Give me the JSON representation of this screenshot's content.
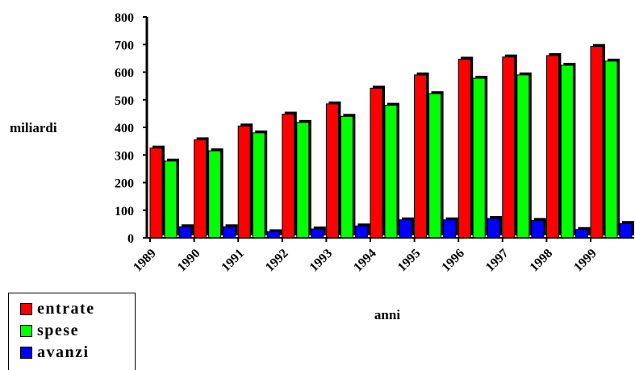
{
  "chart_data": {
    "type": "bar",
    "categories": [
      "1989",
      "1990",
      "1991",
      "1992",
      "1993",
      "1994",
      "1995",
      "1996",
      "1997",
      "1998",
      "1999"
    ],
    "series": [
      {
        "name": "entrate",
        "color": "#ff0000",
        "values": [
          325,
          355,
          405,
          448,
          485,
          542,
          590,
          647,
          655,
          660,
          693
        ]
      },
      {
        "name": "spese",
        "color": "#00ff00",
        "values": [
          278,
          315,
          380,
          418,
          440,
          480,
          522,
          578,
          590,
          625,
          640
        ]
      },
      {
        "name": "avanzi",
        "color": "#0000ff",
        "values": [
          40,
          40,
          22,
          32,
          43,
          65,
          65,
          70,
          63,
          30,
          52
        ]
      }
    ],
    "xlabel": "anni",
    "ylabel": "miliardi",
    "ylim": [
      0,
      800
    ],
    "yticks": [
      "0",
      "100",
      "200",
      "300",
      "400",
      "500",
      "600",
      "700",
      "800"
    ],
    "legend_position": "bottom-left",
    "bar_style": "3d"
  }
}
